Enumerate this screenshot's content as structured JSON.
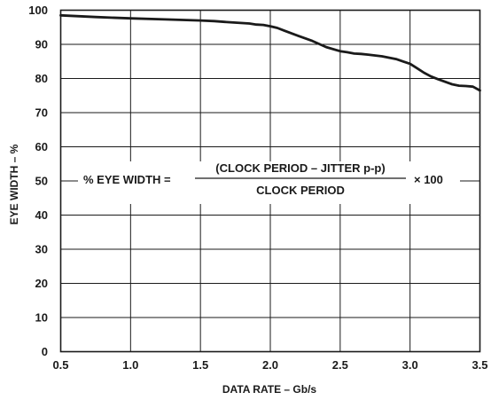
{
  "chart_data": {
    "type": "line",
    "xlabel": "DATA RATE – Gb/s",
    "ylabel": "EYE WIDTH – %",
    "xlim": [
      0.5,
      3.5
    ],
    "ylim": [
      0,
      100
    ],
    "xticks": [
      "0.5",
      "1.0",
      "1.5",
      "2.0",
      "2.5",
      "3.0",
      "3.5"
    ],
    "yticks": [
      "0",
      "10",
      "20",
      "30",
      "40",
      "50",
      "60",
      "70",
      "80",
      "90",
      "100"
    ],
    "grid": true,
    "series": [
      {
        "x": [
          0.5,
          0.75,
          1.0,
          1.25,
          1.5,
          1.6,
          1.7,
          1.85,
          1.9,
          1.95,
          2.0,
          2.05,
          2.1,
          2.2,
          2.3,
          2.4,
          2.5,
          2.55,
          2.6,
          2.65,
          2.7,
          2.8,
          2.9,
          2.95,
          3.0,
          3.05,
          3.1,
          3.15,
          3.2,
          3.3,
          3.35,
          3.4,
          3.45,
          3.5
        ],
        "y": [
          98.5,
          98.0,
          97.6,
          97.3,
          97.0,
          96.8,
          96.5,
          96.1,
          95.8,
          95.7,
          95.3,
          94.8,
          94.0,
          92.5,
          91.0,
          89.2,
          88.0,
          87.7,
          87.3,
          87.2,
          87.0,
          86.5,
          85.7,
          85.0,
          84.3,
          83.0,
          81.7,
          80.6,
          79.8,
          78.3,
          77.9,
          77.8,
          77.6,
          76.5
        ]
      }
    ]
  },
  "formula": {
    "lhs": "% EYE WIDTH =",
    "numerator": "(CLOCK PERIOD – JITTER p-p)",
    "denominator": "CLOCK PERIOD",
    "rhs": "× 100"
  }
}
